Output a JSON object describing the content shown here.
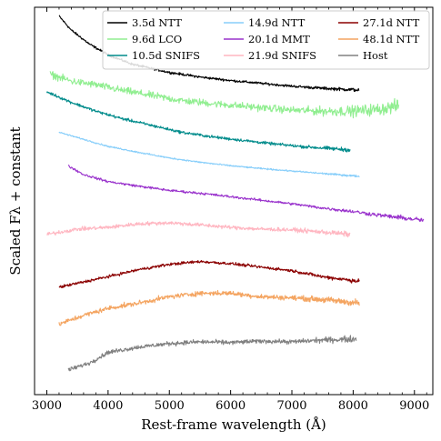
{
  "chart_data": {
    "type": "line",
    "xlabel": "Rest-frame wavelength (Å)",
    "ylabel": "Scaled Fλ + constant",
    "xlim": [
      2800,
      9300
    ],
    "ylim": [
      0,
      11
    ],
    "xticks": [
      3000,
      4000,
      5000,
      6000,
      7000,
      8000,
      9000
    ],
    "legend_position": "top-right",
    "grid": false,
    "series": [
      {
        "name": "3.5d NTT",
        "color": "#000000",
        "x_range": [
          3200,
          8100
        ],
        "noise": 0.05,
        "points": [
          [
            3200,
            10.75
          ],
          [
            3400,
            10.35
          ],
          [
            3700,
            9.95
          ],
          [
            4000,
            9.65
          ],
          [
            4400,
            9.38
          ],
          [
            5000,
            9.15
          ],
          [
            5500,
            9.02
          ],
          [
            6000,
            8.92
          ],
          [
            6500,
            8.84
          ],
          [
            7000,
            8.76
          ],
          [
            7500,
            8.7
          ],
          [
            8100,
            8.65
          ]
        ]
      },
      {
        "name": "9.6d LCO",
        "color": "#90ee90",
        "x_range": [
          3050,
          8750
        ],
        "noise": 0.15,
        "points": [
          [
            3050,
            9.1
          ],
          [
            3400,
            8.9
          ],
          [
            3800,
            8.8
          ],
          [
            4200,
            8.65
          ],
          [
            4700,
            8.5
          ],
          [
            5200,
            8.35
          ],
          [
            5800,
            8.25
          ],
          [
            6500,
            8.15
          ],
          [
            7000,
            8.08
          ],
          [
            7500,
            8.05
          ],
          [
            8000,
            8.05
          ],
          [
            8400,
            8.1
          ],
          [
            8750,
            8.2
          ]
        ]
      },
      {
        "name": "10.5d SNIFS",
        "color": "#008b8b",
        "x_range": [
          3000,
          7950
        ],
        "noise": 0.06,
        "points": [
          [
            3000,
            8.6
          ],
          [
            3400,
            8.3
          ],
          [
            3800,
            8.05
          ],
          [
            4200,
            7.85
          ],
          [
            4700,
            7.65
          ],
          [
            5200,
            7.45
          ],
          [
            5700,
            7.32
          ],
          [
            6200,
            7.22
          ],
          [
            6700,
            7.12
          ],
          [
            7200,
            7.04
          ],
          [
            7950,
            6.95
          ]
        ]
      },
      {
        "name": "14.9d NTT",
        "color": "#87cefa",
        "x_range": [
          3200,
          8100
        ],
        "noise": 0.03,
        "points": [
          [
            3200,
            7.45
          ],
          [
            3600,
            7.25
          ],
          [
            4000,
            7.05
          ],
          [
            4500,
            6.88
          ],
          [
            5000,
            6.72
          ],
          [
            5500,
            6.6
          ],
          [
            6000,
            6.5
          ],
          [
            6500,
            6.42
          ],
          [
            7000,
            6.35
          ],
          [
            7500,
            6.28
          ],
          [
            8100,
            6.2
          ]
        ]
      },
      {
        "name": "20.1d MMT",
        "color": "#9932cc",
        "x_range": [
          3350,
          9150
        ],
        "noise": 0.05,
        "points": [
          [
            3350,
            6.5
          ],
          [
            3600,
            6.25
          ],
          [
            4000,
            6.05
          ],
          [
            4500,
            5.92
          ],
          [
            5000,
            5.8
          ],
          [
            5500,
            5.72
          ],
          [
            6000,
            5.62
          ],
          [
            6500,
            5.52
          ],
          [
            7000,
            5.42
          ],
          [
            7500,
            5.3
          ],
          [
            8000,
            5.2
          ],
          [
            8500,
            5.08
          ],
          [
            9150,
            4.95
          ]
        ]
      },
      {
        "name": "21.9d SNIFS",
        "color": "#ffb6c1",
        "x_range": [
          3000,
          7950
        ],
        "noise": 0.08,
        "points": [
          [
            3000,
            4.55
          ],
          [
            3500,
            4.7
          ],
          [
            4000,
            4.75
          ],
          [
            4500,
            4.85
          ],
          [
            5000,
            4.88
          ],
          [
            5500,
            4.82
          ],
          [
            6000,
            4.75
          ],
          [
            6500,
            4.7
          ],
          [
            7000,
            4.68
          ],
          [
            7500,
            4.62
          ],
          [
            7950,
            4.55
          ]
        ]
      },
      {
        "name": "27.1d NTT",
        "color": "#8b0000",
        "x_range": [
          3200,
          8100
        ],
        "noise": 0.06,
        "points": [
          [
            3200,
            3.05
          ],
          [
            3600,
            3.2
          ],
          [
            4000,
            3.35
          ],
          [
            4500,
            3.55
          ],
          [
            5000,
            3.7
          ],
          [
            5500,
            3.78
          ],
          [
            6000,
            3.72
          ],
          [
            6500,
            3.62
          ],
          [
            7000,
            3.52
          ],
          [
            7500,
            3.35
          ],
          [
            8100,
            3.22
          ]
        ]
      },
      {
        "name": "48.1d NTT",
        "color": "#f4a460",
        "x_range": [
          3200,
          8100
        ],
        "noise": 0.1,
        "points": [
          [
            3200,
            2.0
          ],
          [
            3600,
            2.25
          ],
          [
            4000,
            2.45
          ],
          [
            4500,
            2.6
          ],
          [
            5000,
            2.78
          ],
          [
            5500,
            2.88
          ],
          [
            6000,
            2.88
          ],
          [
            6500,
            2.78
          ],
          [
            7000,
            2.75
          ],
          [
            7500,
            2.7
          ],
          [
            8100,
            2.6
          ]
        ]
      },
      {
        "name": "Host",
        "color": "#808080",
        "x_range": [
          3350,
          8050
        ],
        "noise": 0.09,
        "points": [
          [
            3350,
            0.7
          ],
          [
            3700,
            0.9
          ],
          [
            4000,
            1.2
          ],
          [
            4500,
            1.35
          ],
          [
            5000,
            1.45
          ],
          [
            5500,
            1.5
          ],
          [
            6000,
            1.48
          ],
          [
            6500,
            1.52
          ],
          [
            7000,
            1.5
          ],
          [
            7500,
            1.55
          ],
          [
            8050,
            1.58
          ]
        ]
      }
    ]
  }
}
